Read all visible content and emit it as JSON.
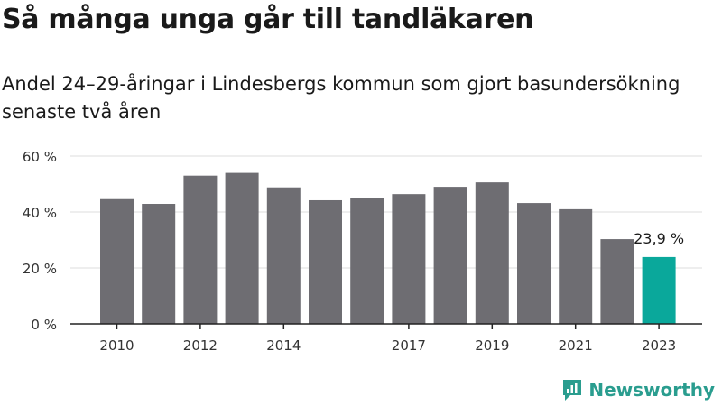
{
  "title": "Så många unga går till tandläkaren",
  "subtitle": "Andel 24–29-åringar i Lindesbergs kommun som gjort basundersökning senaste två åren",
  "brand": {
    "name": "Newsworthy",
    "icon": "newsworthy-logo-icon"
  },
  "colors": {
    "bar": "#6e6d72",
    "highlight": "#0aa89b",
    "grid": "#dddddd",
    "axis": "#222222"
  },
  "chart_data": {
    "type": "bar",
    "x": [
      2010,
      2011,
      2012,
      2013,
      2014,
      2015,
      2016,
      2017,
      2018,
      2019,
      2020,
      2021,
      2022,
      2023
    ],
    "values": [
      44.6,
      42.9,
      53.0,
      54.0,
      48.8,
      44.2,
      44.9,
      46.4,
      49.0,
      50.6,
      43.2,
      41.0,
      30.3,
      23.9
    ],
    "x_tick_labels": [
      "2010",
      "2012",
      "2014",
      "2017",
      "2019",
      "2021",
      "2023"
    ],
    "y_ticks": [
      0,
      20,
      40,
      60
    ],
    "y_tick_labels": [
      "0 %",
      "20 %",
      "40 %",
      "60 %"
    ],
    "ylim": [
      0,
      60
    ],
    "grid": true,
    "highlight_index": 13,
    "annotation": "23,9 %",
    "xlabel": "",
    "ylabel": ""
  }
}
